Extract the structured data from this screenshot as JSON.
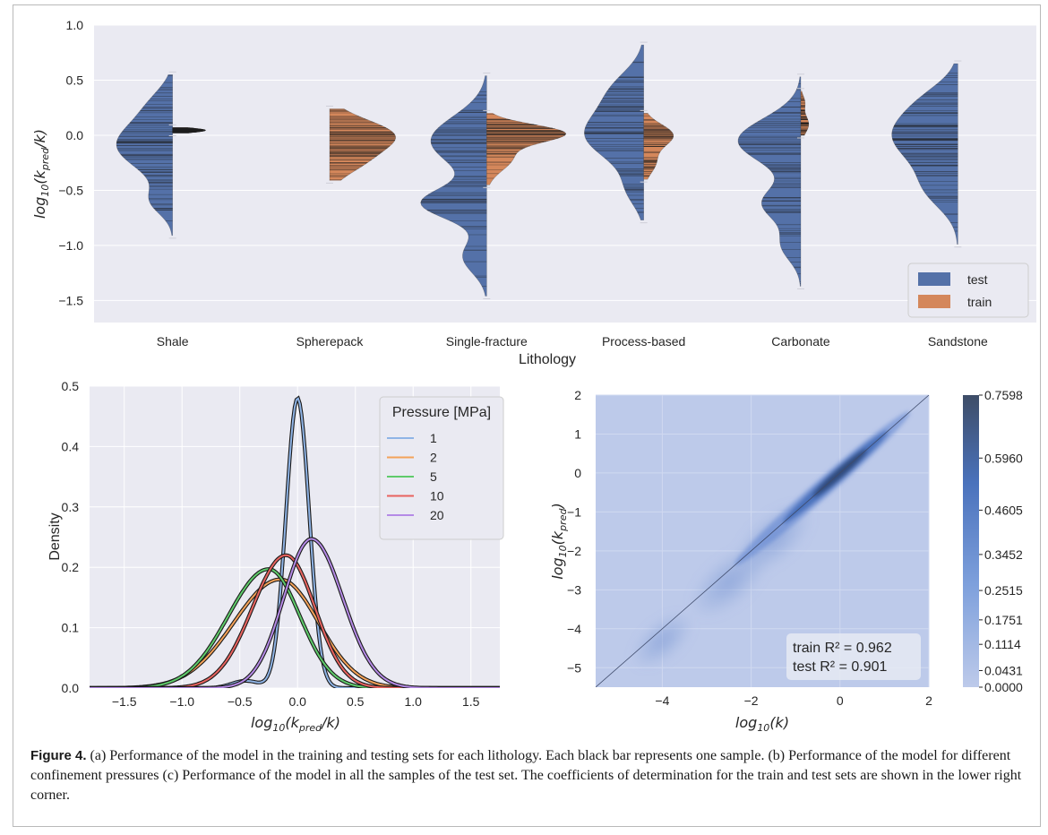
{
  "caption": {
    "label": "Figure 4.",
    "text": "(a) Performance of the model in the training and testing sets for each lithology. Each black bar represents one sample. (b) Performance of the model for different confinement pressures (c) Performance of the model in all the samples of the test set. The coefficients of determination for the train and test sets are shown in the lower right corner."
  },
  "colors": {
    "test": "#5471a8",
    "train": "#d4875b",
    "panel_bg": "#eaeaf2",
    "grid": "#ffffff",
    "pressure": [
      "#8fb4e6",
      "#f4a259",
      "#5fcb6b",
      "#e8635f",
      "#b58ae6"
    ],
    "heat_low": "#bdcaea",
    "heat_high": "#3e4d67"
  },
  "chart_data": [
    {
      "type": "violin",
      "panel": "a",
      "xlabel": "Lithology",
      "ylabel": "log10(kpred/k)",
      "ylim": [
        -1.7,
        1.0
      ],
      "yticks": [
        "-1.5",
        "-1.0",
        "-0.5",
        "0.0",
        "0.5",
        "1.0"
      ],
      "yticks_v": [
        -1.5,
        -1.0,
        -0.5,
        0.0,
        0.5,
        1.0
      ],
      "categories": [
        "Shale",
        "Spherepack",
        "Single-fracture",
        "Process-based",
        "Carbonate",
        "Sandstone"
      ],
      "legend": [
        "test",
        "train"
      ],
      "legend_position": "lower-right",
      "test": [
        {
          "min": -0.91,
          "max": 0.55,
          "peaks": [
            [
              -0.09,
              0.22,
              1.0
            ],
            [
              -0.6,
              0.12,
              0.35
            ],
            [
              0.3,
              0.15,
              0.25
            ]
          ]
        },
        null,
        {
          "min": -1.46,
          "max": 0.54,
          "peaks": [
            [
              -0.05,
              0.22,
              0.7
            ],
            [
              -0.62,
              0.14,
              0.8
            ],
            [
              -1.1,
              0.15,
              0.3
            ]
          ]
        },
        {
          "min": -0.77,
          "max": 0.82,
          "peaks": [
            [
              0.0,
              0.22,
              1.0
            ],
            [
              0.42,
              0.18,
              0.45
            ],
            [
              -0.5,
              0.15,
              0.25
            ]
          ]
        },
        {
          "min": -1.37,
          "max": 0.53,
          "peaks": [
            [
              -0.05,
              0.2,
              1.0
            ],
            [
              -0.62,
              0.15,
              0.6
            ],
            [
              -1.0,
              0.14,
              0.3
            ]
          ]
        },
        {
          "min": -0.99,
          "max": 0.65,
          "peaks": [
            [
              0.0,
              0.25,
              1.0
            ],
            [
              -0.5,
              0.18,
              0.4
            ],
            [
              0.35,
              0.15,
              0.2
            ]
          ]
        }
      ],
      "train": [
        {
          "min": 0.02,
          "max": 0.07,
          "peaks": [
            [
              0.045,
              0.02,
              1.0
            ]
          ]
        },
        {
          "min": -0.41,
          "max": 0.24,
          "peaks": [
            [
              0.0,
              0.14,
              1.0
            ],
            [
              -0.25,
              0.12,
              0.4
            ]
          ]
        },
        {
          "min": -0.45,
          "max": 0.2,
          "peaks": [
            [
              0.02,
              0.08,
              1.0
            ],
            [
              -0.2,
              0.12,
              0.35
            ]
          ]
        },
        {
          "min": -0.4,
          "max": 0.2,
          "peaks": [
            [
              0.0,
              0.1,
              1.0
            ],
            [
              -0.25,
              0.1,
              0.4
            ]
          ]
        },
        {
          "min": 0.0,
          "max": 0.4,
          "peaks": [
            [
              0.1,
              0.08,
              1.0
            ],
            [
              0.3,
              0.06,
              0.5
            ]
          ]
        },
        null
      ]
    },
    {
      "type": "line",
      "panel": "b",
      "xlabel": "log10(kpred/k)",
      "ylabel": "Density",
      "xlim": [
        -1.8,
        1.75
      ],
      "ylim": [
        0,
        0.5
      ],
      "xticks": [
        "-1.5",
        "-1.0",
        "-0.5",
        "0.0",
        "0.5",
        "1.0",
        "1.5"
      ],
      "xticks_v": [
        -1.5,
        -1.0,
        -0.5,
        0.0,
        0.5,
        1.0,
        1.5
      ],
      "yticks": [
        "0.0",
        "0.1",
        "0.2",
        "0.3",
        "0.4",
        "0.5"
      ],
      "yticks_v": [
        0.0,
        0.1,
        0.2,
        0.3,
        0.4,
        0.5
      ],
      "legend_title": "Pressure [MPa]",
      "legend_position": "upper-right",
      "series": [
        {
          "name": "1",
          "peak_x": 0.0,
          "peak_y": 0.48,
          "sigma_l": 0.1,
          "sigma_r": 0.1
        },
        {
          "name": "2",
          "peak_x": -0.15,
          "peak_y": 0.18,
          "sigma_l": 0.4,
          "sigma_r": 0.33
        },
        {
          "name": "5",
          "peak_x": -0.25,
          "peak_y": 0.197,
          "sigma_l": 0.35,
          "sigma_r": 0.27
        },
        {
          "name": "10",
          "peak_x": -0.1,
          "peak_y": 0.22,
          "sigma_l": 0.29,
          "sigma_r": 0.25
        },
        {
          "name": "20",
          "peak_x": 0.12,
          "peak_y": 0.247,
          "sigma_l": 0.24,
          "sigma_r": 0.27
        }
      ]
    },
    {
      "type": "heatmap",
      "panel": "c",
      "xlabel": "log10(k)",
      "ylabel": "log10(kpred)",
      "xlim": [
        -5.5,
        2
      ],
      "ylim": [
        -5.5,
        2
      ],
      "xticks": [
        "-4",
        "-2",
        "0",
        "2"
      ],
      "xticks_v": [
        -4,
        -2,
        0,
        2
      ],
      "yticks": [
        "-5",
        "-4",
        "-3",
        "-2",
        "-1",
        "0",
        "1",
        "2"
      ],
      "yticks_v": [
        -5,
        -4,
        -3,
        -2,
        -1,
        0,
        1,
        2
      ],
      "colorbar_ticks": [
        "0.0000",
        "0.0431",
        "0.1114",
        "0.1751",
        "0.2515",
        "0.3452",
        "0.4605",
        "0.5960",
        "0.7598"
      ],
      "colorbar_values": [
        0.0,
        0.0431,
        0.1114,
        0.1751,
        0.2515,
        0.3452,
        0.4605,
        0.596,
        0.7598
      ],
      "annotations": [
        "train R² = 0.962",
        "test  R² = 0.901"
      ]
    }
  ]
}
